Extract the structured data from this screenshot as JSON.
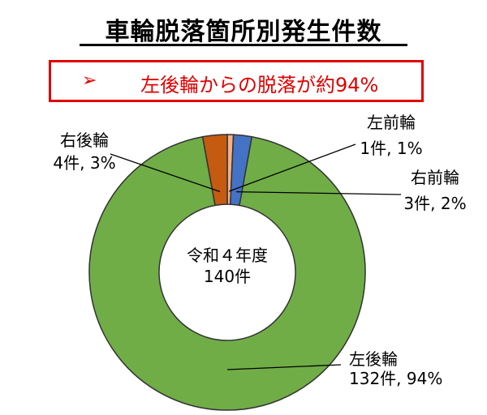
{
  "title": "車輪脱落箇所別発生件数",
  "callout": {
    "marker": "➢",
    "text": "左後輪からの脱落が約94%"
  },
  "center": {
    "line1": "令和４年度",
    "line2": "140件"
  },
  "colors": {
    "accent": "#e00000",
    "left_front": "#4472c4",
    "right_front": "#f4b183",
    "left_rear": "#70ad47",
    "right_rear": "#c55a11"
  },
  "chart_data": {
    "type": "pie",
    "donut": true,
    "total": 140,
    "slices": [
      {
        "name": "左前輪",
        "count": 1,
        "percent": 1,
        "color": "#f4b183",
        "label_line1": "左前輪",
        "label_line2": "1件, 1%"
      },
      {
        "name": "右前輪",
        "count": 3,
        "percent": 2,
        "color": "#4472c4",
        "label_line1": "右前輪",
        "label_line2": "3件, 2%"
      },
      {
        "name": "左後輪",
        "count": 132,
        "percent": 94,
        "color": "#70ad47",
        "label_line1": "左後輪",
        "label_line2": "132件, 94%"
      },
      {
        "name": "右後輪",
        "count": 4,
        "percent": 3,
        "color": "#c55a11",
        "label_line1": "右後輪",
        "label_line2": "4件, 3%"
      }
    ]
  }
}
